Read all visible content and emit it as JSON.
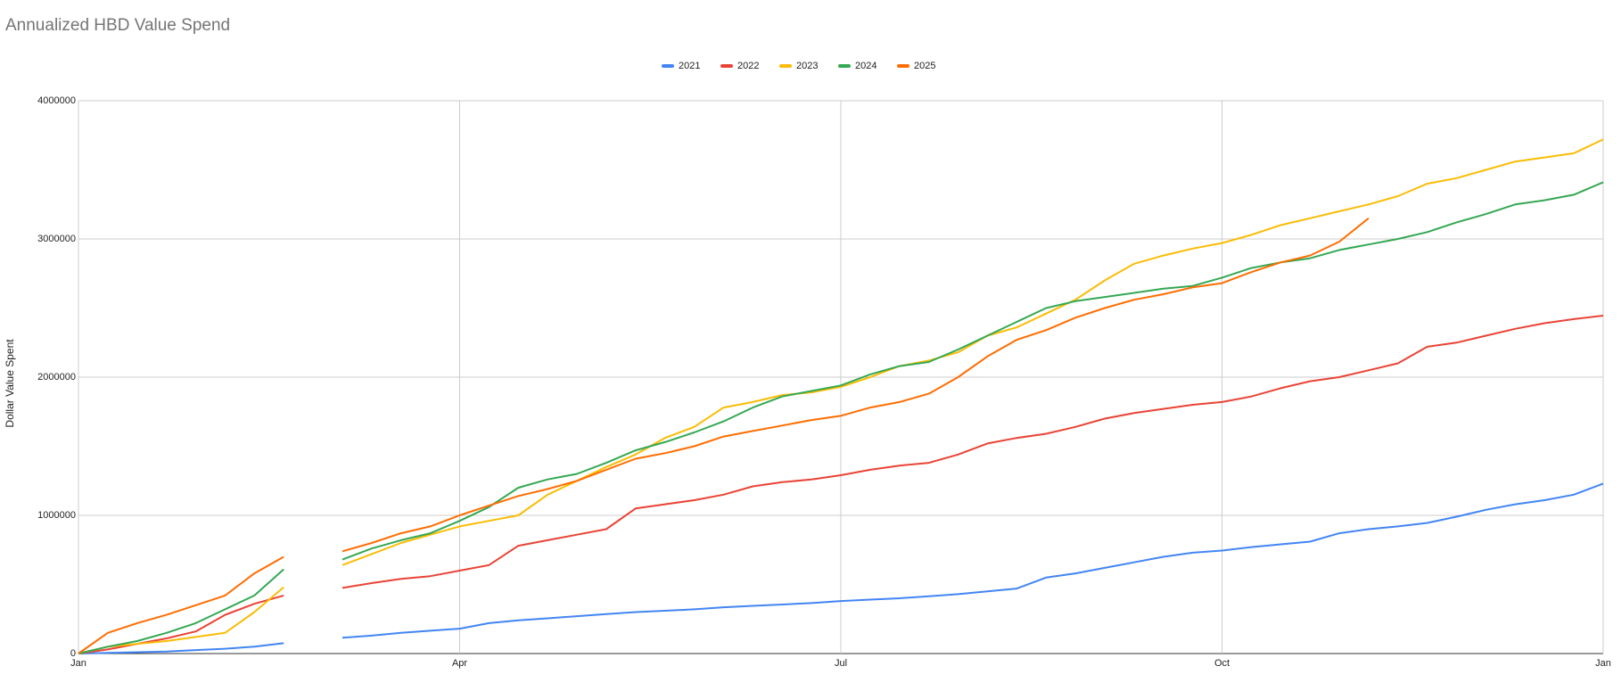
{
  "chart_data": {
    "type": "line",
    "title": "Annualized HBD Value Spend",
    "y_label": "Dollar Value Spent",
    "categories": [
      "Jan",
      null,
      null,
      null,
      null,
      null,
      null,
      null,
      null,
      null,
      null,
      null,
      null,
      "Apr",
      null,
      null,
      null,
      null,
      null,
      null,
      null,
      null,
      null,
      null,
      null,
      null,
      "Jul",
      null,
      null,
      null,
      null,
      null,
      null,
      null,
      null,
      null,
      null,
      null,
      null,
      "Oct",
      null,
      null,
      null,
      null,
      null,
      null,
      null,
      null,
      null,
      null,
      null,
      null,
      "Jan"
    ],
    "ylim": [
      0,
      4000000
    ],
    "yticks": [
      0,
      1000000,
      2000000,
      3000000,
      4000000
    ],
    "grid": true,
    "legend": "top",
    "series": [
      {
        "name": "2021",
        "color": "#4285f4",
        "values": [
          0,
          5000,
          10000,
          15000,
          25000,
          35000,
          50000,
          75000,
          null,
          115000,
          130000,
          150000,
          165000,
          180000,
          220000,
          240000,
          255000,
          270000,
          285000,
          300000,
          310000,
          320000,
          335000,
          345000,
          355000,
          365000,
          380000,
          390000,
          400000,
          415000,
          430000,
          450000,
          470000,
          550000,
          580000,
          620000,
          660000,
          700000,
          730000,
          745000,
          770000,
          790000,
          810000,
          870000,
          900000,
          920000,
          945000,
          990000,
          1040000,
          1080000,
          1110000,
          1150000,
          1230000
        ]
      },
      {
        "name": "2022",
        "color": "#ea4335",
        "values": [
          0,
          30000,
          70000,
          110000,
          160000,
          280000,
          360000,
          420000,
          null,
          475000,
          510000,
          540000,
          560000,
          600000,
          640000,
          780000,
          820000,
          860000,
          900000,
          1050000,
          1080000,
          1110000,
          1150000,
          1210000,
          1240000,
          1260000,
          1290000,
          1330000,
          1360000,
          1380000,
          1440000,
          1520000,
          1560000,
          1590000,
          1640000,
          1700000,
          1740000,
          1770000,
          1800000,
          1820000,
          1860000,
          1920000,
          1970000,
          2000000,
          2050000,
          2100000,
          2220000,
          2250000,
          2300000,
          2350000,
          2390000,
          2420000,
          2445000
        ]
      },
      {
        "name": "2023",
        "color": "#fbbc04",
        "values": [
          0,
          50000,
          70000,
          90000,
          120000,
          150000,
          300000,
          480000,
          null,
          640000,
          720000,
          800000,
          860000,
          920000,
          960000,
          1000000,
          1150000,
          1250000,
          1350000,
          1440000,
          1560000,
          1640000,
          1780000,
          1820000,
          1870000,
          1890000,
          1930000,
          2000000,
          2080000,
          2120000,
          2180000,
          2300000,
          2360000,
          2460000,
          2560000,
          2700000,
          2820000,
          2880000,
          2930000,
          2970000,
          3030000,
          3100000,
          3150000,
          3200000,
          3250000,
          3310000,
          3400000,
          3440000,
          3500000,
          3560000,
          3590000,
          3620000,
          3720000
        ]
      },
      {
        "name": "2024",
        "color": "#34a853",
        "values": [
          0,
          50000,
          90000,
          150000,
          220000,
          320000,
          420000,
          610000,
          null,
          680000,
          760000,
          820000,
          870000,
          960000,
          1060000,
          1200000,
          1260000,
          1300000,
          1380000,
          1470000,
          1530000,
          1600000,
          1680000,
          1780000,
          1860000,
          1900000,
          1940000,
          2020000,
          2080000,
          2110000,
          2200000,
          2300000,
          2400000,
          2500000,
          2550000,
          2580000,
          2610000,
          2640000,
          2660000,
          2720000,
          2790000,
          2830000,
          2860000,
          2920000,
          2960000,
          3000000,
          3050000,
          3120000,
          3180000,
          3250000,
          3280000,
          3320000,
          3410000
        ]
      },
      {
        "name": "2025",
        "color": "#ff6d01",
        "values": [
          0,
          150000,
          220000,
          280000,
          350000,
          420000,
          580000,
          700000,
          null,
          740000,
          800000,
          870000,
          920000,
          1000000,
          1070000,
          1140000,
          1190000,
          1250000,
          1330000,
          1410000,
          1450000,
          1500000,
          1570000,
          1610000,
          1650000,
          1690000,
          1720000,
          1780000,
          1820000,
          1880000,
          2000000,
          2150000,
          2270000,
          2340000,
          2430000,
          2500000,
          2560000,
          2600000,
          2650000,
          2680000,
          2760000,
          2830000,
          2880000,
          2980000,
          3150000,
          null,
          null,
          null,
          null,
          null,
          null,
          null,
          null
        ]
      }
    ]
  }
}
